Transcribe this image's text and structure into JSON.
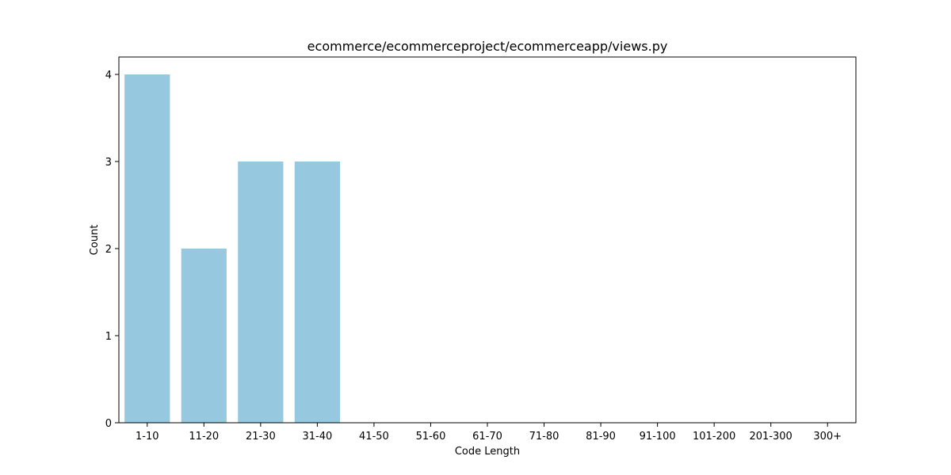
{
  "chart_data": {
    "type": "bar",
    "title": "ecommerce/ecommerceproject/ecommerceapp/views.py",
    "xlabel": "Code Length",
    "ylabel": "Count",
    "categories": [
      "1-10",
      "11-20",
      "21-30",
      "31-40",
      "41-50",
      "51-60",
      "61-70",
      "71-80",
      "81-90",
      "91-100",
      "101-200",
      "201-300",
      "300+"
    ],
    "values": [
      4,
      2,
      3,
      3,
      0,
      0,
      0,
      0,
      0,
      0,
      0,
      0,
      0
    ],
    "ylim": [
      0,
      4.2
    ],
    "yticks": [
      0,
      1,
      2,
      3,
      4
    ],
    "grid": false,
    "bar_color": "#96c9e0"
  }
}
